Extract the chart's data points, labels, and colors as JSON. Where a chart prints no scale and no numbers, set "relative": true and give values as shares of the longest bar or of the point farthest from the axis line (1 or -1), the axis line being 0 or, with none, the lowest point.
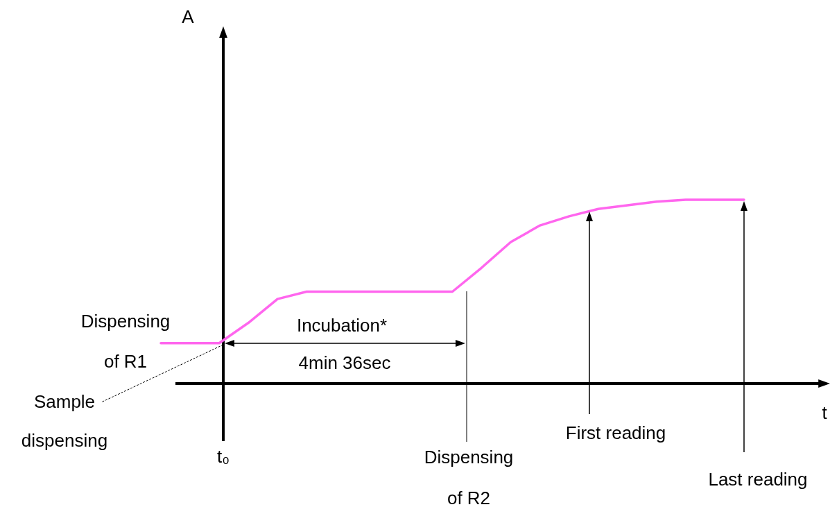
{
  "chart_data": {
    "type": "line",
    "relative": true,
    "xlabel": "t",
    "categories": [
      null,
      null,
      null,
      null,
      null,
      null,
      null,
      null,
      null,
      null,
      null,
      null,
      null,
      null,
      null,
      null,
      null,
      null,
      null,
      null,
      null
    ],
    "series": [
      {
        "color": "#ff66ee",
        "values": [
          0.22,
          0.22,
          0.22,
          0.33,
          0.46,
          0.5,
          0.5,
          0.5,
          0.5,
          0.5,
          0.5,
          0.63,
          0.77,
          0.86,
          0.91,
          0.95,
          0.97,
          0.99,
          1.0,
          1.0,
          1.0
        ]
      }
    ],
    "annotations": [
      "Dispensing of R1",
      "Sample dispensing",
      "Incubation*",
      "4min 36sec",
      "t₀",
      "Dispensing of R2",
      "First reading",
      "Last reading",
      "A"
    ]
  }
}
